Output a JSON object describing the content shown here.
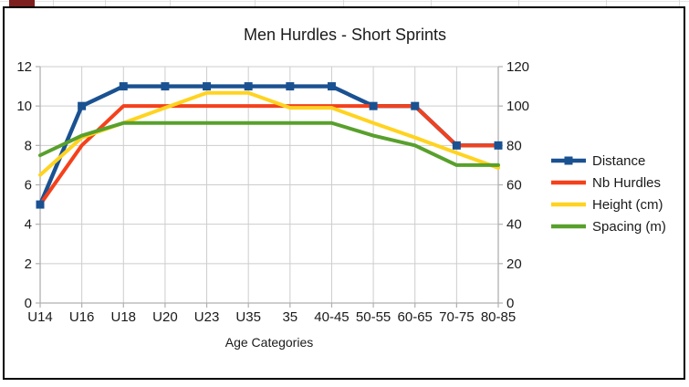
{
  "chart_data": {
    "type": "line",
    "title": "Men Hurdles - Short Sprints",
    "xlabel": "Age Categories",
    "categories": [
      "U14",
      "U16",
      "U18",
      "U20",
      "U23",
      "U35",
      "35",
      "40-45",
      "50-55",
      "60-65",
      "70-75",
      "80-85"
    ],
    "series": [
      {
        "name": "Distance",
        "color": "#1a5191",
        "axis": "right",
        "marker": "square",
        "values": [
          50,
          100,
          110,
          110,
          110,
          110,
          110,
          110,
          100,
          100,
          80,
          80
        ]
      },
      {
        "name": "Nb Hurdles",
        "color": "#f4411c",
        "axis": "left",
        "marker": "none",
        "values": [
          5,
          8,
          10,
          10,
          10,
          10,
          10,
          10,
          10,
          10,
          8,
          8
        ]
      },
      {
        "name": "Height (cm)",
        "color": "#ffd320",
        "axis": "right",
        "marker": "none",
        "values": [
          65,
          84,
          91.4,
          99.1,
          106.7,
          106.7,
          99.1,
          99.1,
          91.4,
          84,
          76.2,
          68.6
        ]
      },
      {
        "name": "Spacing (m)",
        "color": "#58a02c",
        "axis": "left",
        "marker": "none",
        "values": [
          7.5,
          8.5,
          9.14,
          9.14,
          9.14,
          9.14,
          9.14,
          9.14,
          8.5,
          8,
          7,
          7
        ]
      }
    ],
    "left_axis": {
      "min": 0,
      "max": 12,
      "step": 2,
      "tick_labels": [
        "0",
        "2",
        "4",
        "6",
        "8",
        "10",
        "12"
      ]
    },
    "right_axis": {
      "min": 0,
      "max": 120,
      "step": 20,
      "tick_labels": [
        "0",
        "20",
        "40",
        "60",
        "80",
        "100",
        "120"
      ]
    },
    "grid": true,
    "legend_position": "right"
  },
  "decor": {
    "grid_color": "#cdcdcd",
    "axis_color": "#b0b0b0",
    "text_color": "#1a1a1a",
    "frame_border_color": "#000000",
    "red_cell_color": "#7e1f1f"
  }
}
